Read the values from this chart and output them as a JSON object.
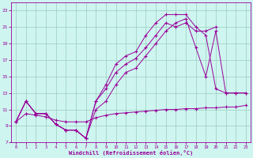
{
  "xlabel": "Windchill (Refroidissement éolien,°C)",
  "bg_color": "#cef5f0",
  "line_color": "#990099",
  "grid_color": "#99ccbb",
  "xlim": [
    -0.5,
    23.5
  ],
  "ylim": [
    7,
    24
  ],
  "xticks": [
    0,
    1,
    2,
    3,
    4,
    5,
    6,
    7,
    8,
    9,
    10,
    11,
    12,
    13,
    14,
    15,
    16,
    17,
    18,
    19,
    20,
    21,
    22,
    23
  ],
  "yticks": [
    7,
    9,
    11,
    13,
    15,
    17,
    19,
    21,
    23
  ],
  "line1_x": [
    0,
    1,
    2,
    3,
    4,
    5,
    6,
    7,
    8,
    9,
    10,
    11,
    12,
    13,
    14,
    15,
    16,
    17,
    18,
    19,
    20,
    21,
    22,
    23
  ],
  "line1_y": [
    9.5,
    10.5,
    10.3,
    10.1,
    9.7,
    9.5,
    9.5,
    9.5,
    10.0,
    10.3,
    10.5,
    10.6,
    10.7,
    10.8,
    10.9,
    11.0,
    11.0,
    11.1,
    11.1,
    11.2,
    11.2,
    11.3,
    11.3,
    11.5
  ],
  "line2_x": [
    0,
    1,
    2,
    3,
    4,
    5,
    6,
    7,
    8,
    9,
    10,
    11,
    12,
    13,
    14,
    15,
    16,
    17,
    18,
    19,
    20,
    21,
    22,
    23
  ],
  "line2_y": [
    9.5,
    12.0,
    10.5,
    10.5,
    9.2,
    8.5,
    8.5,
    7.5,
    12.0,
    14.0,
    16.5,
    17.5,
    18.0,
    20.0,
    21.5,
    22.5,
    22.5,
    22.5,
    21.0,
    20.0,
    13.5,
    13.0,
    13.0,
    13.0
  ],
  "line3_x": [
    0,
    1,
    2,
    3,
    4,
    5,
    6,
    7,
    8,
    9,
    10,
    11,
    12,
    13,
    14,
    15,
    16,
    17,
    18,
    19,
    20
  ],
  "line3_y": [
    9.5,
    12.0,
    10.5,
    10.5,
    9.2,
    8.5,
    8.5,
    7.5,
    12.0,
    13.5,
    15.5,
    16.5,
    17.2,
    18.5,
    20.0,
    21.5,
    21.0,
    21.5,
    20.5,
    20.5,
    21.0
  ],
  "line4_x": [
    0,
    1,
    2,
    3,
    4,
    5,
    6,
    7,
    8,
    9,
    10,
    11,
    12,
    13,
    14,
    15,
    16,
    17,
    18,
    19,
    20,
    21,
    22,
    23
  ],
  "line4_y": [
    9.5,
    12.0,
    10.5,
    10.5,
    9.2,
    8.5,
    8.5,
    7.5,
    11.0,
    12.0,
    14.0,
    15.5,
    16.0,
    17.5,
    19.0,
    20.5,
    21.5,
    22.0,
    18.5,
    15.0,
    20.5,
    13.0,
    13.0,
    13.0
  ]
}
